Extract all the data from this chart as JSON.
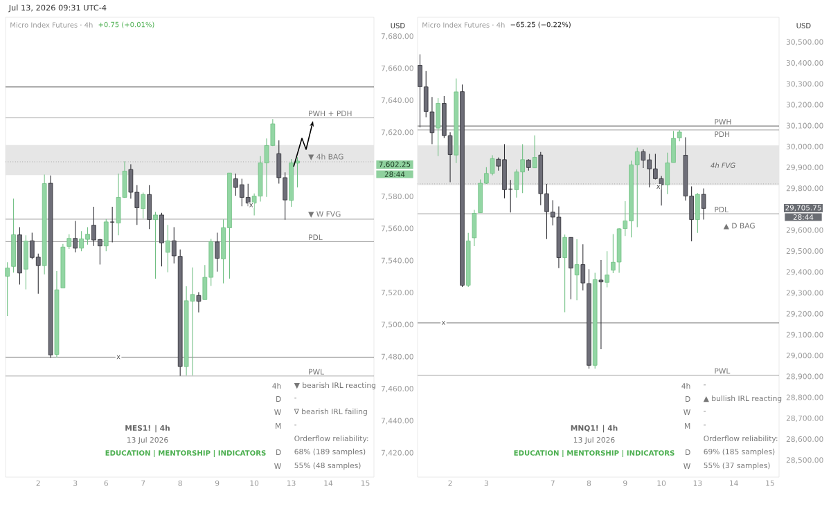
{
  "chart_data": [
    {
      "type": "candlestick",
      "title": "Micro Index Futures · 4h",
      "subtitle": "+0.75 (+0.01%)",
      "ylabel": "USD",
      "categories": [
        null,
        null,
        null,
        null,
        null,
        "2",
        null,
        null,
        null,
        null,
        null,
        "3",
        null,
        null,
        null,
        null,
        "6",
        null,
        null,
        null,
        null,
        null,
        "7",
        null,
        null,
        null,
        null,
        null,
        "8",
        null,
        null,
        null,
        null,
        null,
        "9",
        null,
        null,
        null,
        null,
        null,
        "10",
        null,
        null,
        null,
        null,
        null,
        "13",
        null,
        null,
        null,
        null,
        null,
        "14",
        null,
        null,
        null,
        null,
        null,
        "15"
      ],
      "ohlc": [
        [
          7530.4,
          7539.1,
          7505.6,
          7535.5
        ],
        [
          7536.5,
          7578.8,
          7532.6,
          7556.3
        ],
        [
          7556.2,
          7561.0,
          7525.2,
          7532.4
        ],
        [
          7534.8,
          7555.9,
          7522.2,
          7552.3
        ],
        [
          7552.5,
          7557.6,
          7540.9,
          7542.1
        ],
        [
          7542.3,
          7544.5,
          7519.5,
          7537.0
        ],
        [
          7537.0,
          7593.8,
          7531.6,
          7588.2
        ],
        [
          7588.4,
          7593.3,
          7479.4,
          7481.3
        ],
        [
          7481.6,
          7533.6,
          7479.7,
          7521.9
        ],
        [
          7523.1,
          7550.5,
          7523.1,
          7548.6
        ],
        [
          7549.0,
          7556.6,
          7547.4,
          7554.0
        ],
        [
          7554.0,
          7564.9,
          7545.3,
          7547.9
        ],
        [
          7547.9,
          7558.5,
          7546.0,
          7553.7
        ],
        [
          7553.4,
          7561.0,
          7550.1,
          7556.6
        ],
        [
          7562.2,
          7573.7,
          7549.3,
          7553.0
        ],
        [
          7553.3,
          7553.7,
          7537.7,
          7549.3
        ],
        [
          7549.3,
          7566.1,
          7546.0,
          7564.3
        ],
        [
          7564.2,
          7573.7,
          7551.5,
          7564.2
        ],
        [
          7563.6,
          7594.5,
          7555.9,
          7579.6
        ],
        [
          7579.6,
          7602.1,
          7579.2,
          7596.0
        ],
        [
          7597.0,
          7600.3,
          7578.8,
          7582.8
        ],
        [
          7582.8,
          7587.2,
          7562.4,
          7573.1
        ],
        [
          7572.6,
          7582.6,
          7566.5,
          7581.4
        ],
        [
          7581.4,
          7587.2,
          7559.8,
          7565.8
        ],
        [
          7565.7,
          7570.5,
          7528.9,
          7568.6
        ],
        [
          7568.6,
          7570.0,
          7536.5,
          7551.2
        ],
        [
          7545.3,
          7562.4,
          7532.9,
          7552.5
        ],
        [
          7552.5,
          7561.0,
          7538.4,
          7543.1
        ],
        [
          7542.8,
          7547.1,
          7468.2,
          7474.0
        ],
        [
          7474.0,
          7524.1,
          7468.5,
          7515.1
        ],
        [
          7514.8,
          7535.9,
          7468.5,
          7519.0
        ],
        [
          7518.4,
          7520.5,
          7507.8,
          7514.7
        ],
        [
          7515.8,
          7537.4,
          7515.8,
          7529.7
        ],
        [
          7529.7,
          7553.7,
          7524.3,
          7552.0
        ],
        [
          7551.8,
          7557.6,
          7533.3,
          7541.6
        ],
        [
          7541.2,
          7565.9,
          7526.0,
          7560.7
        ],
        [
          7560.6,
          7594.8,
          7528.9,
          7594.8
        ],
        [
          7591.2,
          7594.5,
          7580.7,
          7585.8
        ],
        [
          7587.5,
          7591.2,
          7574.1,
          7579.6
        ],
        [
          7579.6,
          7588.1,
          7574.1,
          7576.0
        ],
        [
          7576.0,
          7582.1,
          7568.3,
          7580.4
        ],
        [
          7580.4,
          7605.4,
          7577.0,
          7601.1
        ],
        [
          7601.1,
          7616.4,
          7579.9,
          7612.0
        ],
        [
          7612.0,
          7628.5,
          7611.6,
          7625.5
        ],
        [
          7606.9,
          7615.2,
          7588.2,
          7591.9
        ],
        [
          7591.9,
          7595.2,
          7565.7,
          7578.0
        ],
        [
          7577.7,
          7603.5,
          7573.7,
          7601.1
        ],
        [
          7601.0,
          7604.7,
          7585.8,
          7602.25
        ],
        null,
        null,
        null,
        null,
        null,
        null,
        null,
        null,
        null,
        null,
        null
      ],
      "ylim": [
        7405,
        7692
      ],
      "yticks": [
        {
          "value": 7420,
          "label": "7,420.00"
        },
        {
          "value": 7440,
          "label": "7,440.00"
        },
        {
          "value": 7460,
          "label": "7,460.00"
        },
        {
          "value": 7480,
          "label": "7,480.00"
        },
        {
          "value": 7500,
          "label": "7,500.00"
        },
        {
          "value": 7520,
          "label": "7,520.00"
        },
        {
          "value": 7540,
          "label": "7,540.00"
        },
        {
          "value": 7560,
          "label": "7,560.00"
        },
        {
          "value": 7580,
          "label": "7,580.00"
        },
        {
          "value": 7620,
          "label": "7,620.00"
        },
        {
          "value": 7640,
          "label": "7,640.00"
        },
        {
          "value": 7660,
          "label": "7,660.00"
        },
        {
          "value": 7680,
          "label": "7,680.00"
        }
      ],
      "ref_lines": [
        {
          "axis": "y",
          "value": 7648.5,
          "color": "#222222"
        },
        {
          "axis": "y",
          "value": 7629.3,
          "label": "PWH + PDH",
          "color": "#888888"
        },
        {
          "axis": "y",
          "value": 7601.8,
          "label": "▼ 4h BAG",
          "color": "#888888",
          "line_style": "dotted"
        },
        {
          "axis": "y",
          "value": 7566.0,
          "label": "▼ W FVG",
          "color": "#888888"
        },
        {
          "axis": "y",
          "value": 7552.0,
          "label": "PDL",
          "color": "#888888"
        },
        {
          "axis": "y",
          "value": 7479.9,
          "color": "#555555"
        },
        {
          "axis": "y",
          "value": 7468.1,
          "label": "PWL",
          "color": "#888888"
        }
      ],
      "bands": [
        {
          "axis": "y",
          "from": 7593.5,
          "to": 7612.3,
          "color": "#e6e6e6"
        }
      ],
      "annotations": [
        "Jul 13, 2026 09:31 UTC-4",
        "MES1! | 4h",
        "13 Jul 2026",
        "EDUCATION | MENTORSHIP | INDICATORS",
        "4h",
        "▼ bearish IRL reacting",
        "D",
        "-",
        "W",
        "∇ bearish IRL failing",
        "M",
        "-",
        "Orderflow reliability:",
        "D",
        "68% (189 samples)",
        "W",
        "55% (48 samples)",
        "7,602.25",
        "28:44",
        {
          "text": "x",
          "y": 7479.9
        },
        {
          "text": "x",
          "y": 7574.7
        }
      ]
    },
    {
      "type": "candlestick",
      "title": "Micro Index Futures · 4h",
      "subtitle": "−65.25 (−0.22%)",
      "ylabel": "USD",
      "categories": [
        null,
        null,
        null,
        null,
        null,
        "2",
        null,
        null,
        null,
        null,
        null,
        "3",
        null,
        null,
        null,
        null,
        null,
        null,
        null,
        null,
        null,
        null,
        "7",
        null,
        null,
        null,
        null,
        null,
        "8",
        null,
        null,
        null,
        null,
        null,
        "9",
        null,
        null,
        null,
        null,
        null,
        "10",
        null,
        null,
        null,
        null,
        null,
        "13",
        null,
        null,
        null,
        null,
        null,
        "14",
        null,
        null,
        null,
        null,
        null,
        "15"
      ],
      "ohlc": [
        [
          30390,
          30443,
          30093,
          30288
        ],
        [
          30287,
          30363,
          30142,
          30169
        ],
        [
          30167,
          30239,
          30013,
          30068
        ],
        [
          30090,
          30233,
          29956,
          30208
        ],
        [
          30208,
          30243,
          30043,
          30054
        ],
        [
          30054,
          30070,
          29831,
          29963
        ],
        [
          29961,
          30327,
          29923,
          30263
        ],
        [
          30264,
          30298,
          29330,
          29338
        ],
        [
          29338,
          29589,
          29330,
          29550
        ],
        [
          29565,
          29699,
          29525,
          29682
        ],
        [
          29685,
          29844,
          29685,
          29826
        ],
        [
          29826,
          29903,
          29823,
          29873
        ],
        [
          29873,
          29960,
          29864,
          29944
        ],
        [
          29941,
          29949,
          29886,
          29908
        ],
        [
          29939,
          30013,
          29754,
          29795
        ],
        [
          29798,
          29842,
          29686,
          29798
        ],
        [
          29795,
          29892,
          29757,
          29880
        ],
        [
          29880,
          30013,
          29779,
          29939
        ],
        [
          29937,
          29941,
          29886,
          29901
        ],
        [
          29900,
          30055,
          29900,
          29950
        ],
        [
          29961,
          29976,
          29721,
          29776
        ],
        [
          29776,
          29823,
          29559,
          29690
        ],
        [
          29688,
          29745,
          29624,
          29664
        ],
        [
          29664,
          29715,
          29420,
          29470
        ],
        [
          29470,
          29580,
          29209,
          29567
        ],
        [
          29567,
          29567,
          29271,
          29420
        ],
        [
          29387,
          29558,
          29266,
          29437
        ],
        [
          29437,
          29534,
          29313,
          29349
        ],
        [
          29346,
          29415,
          28939,
          28955
        ],
        [
          28955,
          29398,
          28939,
          29365
        ],
        [
          29363,
          29459,
          29032,
          29354
        ],
        [
          29352,
          29501,
          29328,
          29387
        ],
        [
          29410,
          29583,
          29396,
          29448
        ],
        [
          29449,
          29611,
          29398,
          29608
        ],
        [
          29609,
          29740,
          29574,
          29646
        ],
        [
          29646,
          29934,
          29567,
          29914
        ],
        [
          29914,
          29996,
          29616,
          29977
        ],
        [
          29977,
          29988,
          29899,
          29936
        ],
        [
          29938,
          29967,
          29806,
          29895
        ],
        [
          29895,
          29967,
          29844,
          29848
        ],
        [
          29848,
          29861,
          29719,
          29818
        ],
        [
          29818,
          29972,
          29774,
          29923
        ],
        [
          29925,
          30076,
          29925,
          30041
        ],
        [
          30043,
          30081,
          30027,
          30071
        ],
        [
          29960,
          30046,
          29743,
          29765
        ],
        [
          29765,
          29811,
          29548,
          29652
        ],
        [
          29652,
          29779,
          29589,
          29773
        ],
        [
          29773,
          29801,
          29652,
          29705.75
        ],
        null,
        null,
        null,
        null,
        null,
        null,
        null,
        null,
        null,
        null,
        null
      ],
      "ylim": [
        28420,
        30620
      ],
      "yticks": [
        {
          "value": 28500,
          "label": "28,500.00"
        },
        {
          "value": 28600,
          "label": "28,600.00"
        },
        {
          "value": 28700,
          "label": "28,700.00"
        },
        {
          "value": 28800,
          "label": "28,800.00"
        },
        {
          "value": 28900,
          "label": "28,900.00"
        },
        {
          "value": 29000,
          "label": "29,000.00"
        },
        {
          "value": 29100,
          "label": "29,100.00"
        },
        {
          "value": 29200,
          "label": "29,200.00"
        },
        {
          "value": 29300,
          "label": "29,300.00"
        },
        {
          "value": 29400,
          "label": "29,400.00"
        },
        {
          "value": 29500,
          "label": "29,500.00"
        },
        {
          "value": 29600,
          "label": "29,600.00"
        },
        {
          "value": 29800,
          "label": "29,800.00"
        },
        {
          "value": 29900,
          "label": "29,900.00"
        },
        {
          "value": 30000,
          "label": "30,000.00"
        },
        {
          "value": 30100,
          "label": "30,100.00"
        },
        {
          "value": 30200,
          "label": "30,200.00"
        },
        {
          "value": 30300,
          "label": "30,300.00"
        },
        {
          "value": 30400,
          "label": "30,400.00"
        },
        {
          "value": 30500,
          "label": "30,500.00"
        }
      ],
      "ref_lines": [
        {
          "axis": "y",
          "value": 30100,
          "label": "PWH",
          "color": "#222222"
        },
        {
          "axis": "y",
          "value": 30081,
          "label": "PDH",
          "color": "#888888"
        },
        {
          "axis": "y",
          "value": 29823,
          "color": "#888888",
          "line_style": "dotted"
        },
        {
          "axis": "y",
          "value": 29680,
          "label": "PDL",
          "color": "#888888"
        },
        {
          "axis": "y",
          "value": 29158,
          "color": "#555555"
        },
        {
          "axis": "y",
          "value": 28908,
          "label": "PWL",
          "color": "#888888"
        }
      ],
      "bands": [
        {
          "axis": "y",
          "from": 29817,
          "to": 30007,
          "label": "4h FVG",
          "color": "#e6e6e6"
        }
      ],
      "annotations": [
        "MNQ1! | 4h",
        "13 Jul 2026",
        "EDUCATION | MENTORSHIP | INDICATORS",
        "4h",
        "-",
        "D",
        "▲ bullish IRL reacting",
        "W",
        "-",
        "M",
        "-",
        "Orderflow reliability:",
        "D",
        "69% (185 samples)",
        "W",
        "55% (37 samples)",
        "29,705.75",
        "28:44",
        "▲ D BAG",
        {
          "text": "x",
          "y": 29158
        },
        {
          "text": "x",
          "y": 29809
        }
      ]
    }
  ]
}
